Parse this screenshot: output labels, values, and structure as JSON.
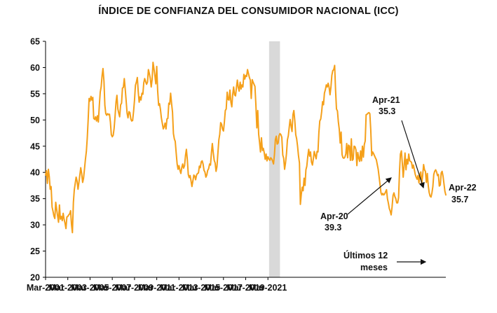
{
  "chart_data": {
    "type": "line",
    "title": "ÍNDICE DE CONFIANZA DEL CONSUMIDOR NACIONAL (ICC)",
    "xlabel": "",
    "ylabel": "",
    "ylim": [
      20,
      65
    ],
    "yticks": [
      "20",
      "25",
      "30",
      "35",
      "40",
      "45",
      "50",
      "55",
      "60",
      "65"
    ],
    "xticks": [
      "Mar-2001",
      "Mar-2003",
      "Mar-2005",
      "Mar-2007",
      "Mar-2009",
      "Mar-2011",
      "Mar-2013",
      "Mar-2015",
      "Mar-2017",
      "Mar-2019",
      "Mar-2021"
    ],
    "grid": false,
    "series_color": "#f5a01a",
    "shade_color": "#d9d9d9",
    "shade_range": [
      "May-2021",
      "Apr-2022"
    ],
    "start": "Mar-2001",
    "series": [
      {
        "values": [
          39.5,
          40.3,
          37.9,
          40.6,
          39.2,
          36.8,
          37.3,
          33.4,
          32.6,
          31.7,
          31.2,
          34.3,
          32.9,
          31.7,
          30.5,
          33.8,
          31.1,
          31.6,
          30.8,
          32.2,
          31.1,
          30.3,
          29.3,
          31.5,
          31.6,
          31.9,
          32.1,
          32.7,
          30.1,
          28.5,
          34.3,
          36.7,
          37.9,
          39.1,
          38.4,
          36.8,
          38.1,
          39.5,
          40.9,
          39.8,
          38.1,
          38.9,
          40.6,
          42.4,
          44.0,
          46.6,
          50.1,
          54.1,
          53.6,
          54.5,
          53.8,
          54.3,
          50.3,
          50.1,
          50.6,
          49.8,
          50.8,
          49.6,
          52.8,
          55.3,
          56.3,
          58.4,
          59.8,
          57.4,
          52.8,
          51.2,
          50.9,
          51.2,
          51.0,
          51.1,
          49.6,
          47.2,
          46.8,
          47.1,
          48.4,
          50.6,
          53.4,
          54.7,
          52.1,
          51.3,
          50.6,
          52.9,
          53.2,
          56.1,
          56.2,
          57.9,
          55.8,
          53.6,
          51.3,
          50.4,
          51.6,
          51.4,
          50.2,
          49.8,
          49.9,
          51.7,
          53.8,
          56.6,
          57.2,
          58.1,
          55.4,
          53.4,
          54.4,
          53.8,
          55.1,
          54.9,
          57.1,
          57.9,
          57.3,
          56.8,
          57.2,
          59.6,
          58.9,
          57.9,
          56.3,
          57.7,
          61.0,
          59.8,
          58.4,
          56.9,
          60.2,
          55.6,
          52.8,
          53.1,
          52.0,
          50.4,
          49.4,
          48.3,
          48.7,
          49.4,
          48.3,
          50.2,
          50.3,
          53.2,
          53.0,
          55.1,
          53.1,
          51.5,
          47.4,
          46.4,
          45.9,
          43.6,
          41.6,
          40.6,
          41.3,
          40.4,
          39.8,
          40.9,
          41.6,
          40.8,
          41.3,
          43.2,
          44.4,
          42.5,
          39.6,
          39.0,
          39.4,
          38.4,
          37.3,
          38.4,
          39.5,
          39.3,
          38.6,
          39.5,
          39.8,
          39.9,
          41.2,
          40.9,
          42.0,
          42.2,
          41.6,
          40.4,
          40.1,
          39.1,
          39.5,
          40.4,
          40.7,
          41.6,
          41.4,
          43.7,
          45.5,
          43.8,
          42.3,
          41.8,
          40.2,
          41.1,
          43.6,
          46.2,
          47.3,
          49.5,
          49.2,
          48.2,
          47.9,
          49.6,
          51.8,
          52.1,
          55.3,
          53.9,
          53.8,
          55.7,
          53.4,
          52.5,
          54.9,
          56.3,
          54.8,
          54.6,
          56.2,
          57.6,
          56.2,
          55.5,
          57.2,
          55.9,
          56.7,
          56.3,
          58.7,
          57.8,
          58.5,
          58.3,
          59.6,
          58.8,
          58.1,
          57.6,
          54.1,
          57.7,
          57.2,
          56.8,
          56.4,
          53.0,
          48.5,
          51.8,
          47.3,
          45.7,
          43.9,
          46.6,
          44.2,
          44.6,
          43.8,
          42.5,
          43.5,
          42.2,
          43.0,
          42.6,
          42.3,
          42.8,
          42.6,
          42.2,
          41.6,
          43.4,
          46.2,
          46.9,
          45.4,
          45.6,
          47.0,
          47.4,
          47.2,
          46.7,
          43.3,
          42.7,
          40.6,
          41.8,
          43.6,
          46.2,
          47.0,
          48.6,
          50.1,
          48.8,
          47.8,
          51.0,
          51.8,
          49.8,
          47.2,
          46.4,
          45.0,
          43.2,
          41.8,
          33.9,
          35.8,
          37.2,
          36.5,
          38.9,
          37.5,
          40.5,
          41.2,
          43.1,
          44.4,
          43.1,
          43.9,
          42.0,
          41.4,
          42.6,
          44.0,
          43.3,
          42.6,
          44.0,
          43.9,
          47.6,
          49.8,
          50.2,
          51.6,
          53.5,
          52.9,
          55.1,
          55.8,
          56.7,
          56.3,
          57.0,
          56.2,
          54.8,
          56.3,
          58.5,
          59.4,
          59.6,
          60.4,
          55.7,
          52.1,
          51.7,
          49.6,
          48.2,
          45.6,
          47.7,
          43.4,
          42.8,
          42.7,
          42.9,
          43.5,
          45.5,
          42.8,
          45.2,
          45.0,
          42.3,
          46.4,
          42.3,
          42.5,
          45.0,
          44.9,
          44.3,
          41.3,
          43.8,
          42.7,
          42.1,
          44.1,
          42.2,
          45.0,
          42.9,
          45.3,
          46.0,
          51.0,
          51.1,
          51.3,
          51.4,
          51.2,
          48.1,
          43.2,
          43.9,
          43.6,
          43.2,
          42.8,
          42.4,
          41.5,
          40.6,
          39.2,
          37.6,
          36.1,
          35.7,
          36.0,
          35.7,
          35.9,
          36.3,
          36.7,
          35.0,
          34.1,
          33.1,
          32.6,
          31.9,
          33.4,
          35.6,
          36.1,
          35.4,
          35.0,
          34.2,
          34.2,
          35.2,
          40.1,
          43.5,
          44.1,
          41.8,
          39.1,
          41.2,
          43.7,
          40.5,
          42.5,
          41.6,
          43.5,
          42.2,
          42.1,
          41.9,
          40.8,
          41.4,
          40.5,
          39.6,
          39.1,
          38.7,
          39.4,
          38.0,
          39.7,
          40.1,
          37.8,
          39.5,
          41.5,
          40.5,
          40.2,
          38.1,
          39.8,
          37.5,
          36.2,
          35.5,
          35.3,
          36.1,
          37.3,
          39.6,
          40.2,
          40.5,
          40.1,
          39.4,
          39.6,
          37.4,
          37.6,
          39.9,
          40.2,
          39.3,
          37.8,
          36.4,
          35.7
        ]
      }
    ],
    "annotations": [
      {
        "date": "Apr-20",
        "value": "39.3"
      },
      {
        "date": "Apr-21",
        "value": "35.3"
      },
      {
        "date": "Apr-22",
        "value": "35.7"
      },
      {
        "text": "Últimos 12 meses"
      }
    ]
  }
}
